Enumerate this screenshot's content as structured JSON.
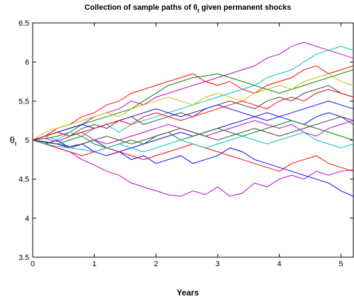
{
  "chart_data": {
    "type": "line",
    "title": [
      "Collection of sample paths of θ",
      "t",
      " given permanent shocks"
    ],
    "x_label": "Years",
    "y_label": [
      "θ",
      "t"
    ],
    "xlim": [
      0,
      5.2
    ],
    "xticks": [
      0,
      1,
      2,
      3,
      4,
      5
    ],
    "ylim": [
      3.5,
      6.5
    ],
    "yticks": [
      3.5,
      4,
      4.5,
      5,
      5.5,
      6,
      6.5
    ],
    "grid": false,
    "x": [
      0,
      0.2,
      0.4,
      0.6,
      0.8,
      1,
      1.2,
      1.4,
      1.6,
      1.8,
      2,
      2.2,
      2.4,
      2.6,
      2.8,
      3,
      3.2,
      3.4,
      3.6,
      3.8,
      4,
      4.2,
      4.4,
      4.6,
      4.8,
      5,
      5.2
    ],
    "series": [
      {
        "color": "#bf00bf",
        "values": [
          5.0,
          4.95,
          4.9,
          4.85,
          4.75,
          4.68,
          4.6,
          4.55,
          4.45,
          4.4,
          4.35,
          4.3,
          4.28,
          4.35,
          4.3,
          4.4,
          4.28,
          4.32,
          4.45,
          4.4,
          4.5,
          4.55,
          4.5,
          4.6,
          4.55,
          4.6,
          4.62
        ]
      },
      {
        "color": "#bf00bf",
        "values": [
          5.0,
          5.05,
          5.1,
          5.15,
          5.2,
          5.3,
          5.35,
          5.4,
          5.5,
          5.45,
          5.55,
          5.6,
          5.65,
          5.7,
          5.75,
          5.8,
          5.85,
          5.9,
          5.95,
          6.05,
          6.1,
          6.2,
          6.25,
          6.2,
          6.15,
          6.1,
          6.05
        ]
      },
      {
        "color": "#0000ff",
        "values": [
          5.0,
          4.98,
          4.95,
          4.9,
          4.95,
          4.85,
          4.8,
          4.85,
          4.75,
          4.8,
          4.7,
          4.75,
          4.8,
          4.7,
          4.75,
          4.8,
          4.9,
          4.85,
          4.75,
          4.7,
          4.65,
          4.6,
          4.55,
          4.5,
          4.45,
          4.35,
          4.28
        ]
      },
      {
        "color": "#ff0000",
        "values": [
          5.0,
          5.05,
          5.15,
          5.2,
          5.3,
          5.35,
          5.45,
          5.5,
          5.6,
          5.65,
          5.7,
          5.75,
          5.8,
          5.85,
          5.75,
          5.7,
          5.75,
          5.65,
          5.6,
          5.7,
          5.75,
          5.8,
          5.9,
          5.95,
          5.85,
          5.9,
          5.95
        ]
      },
      {
        "color": "#008000",
        "values": [
          5.0,
          5.02,
          5.05,
          5.1,
          5.2,
          5.25,
          5.3,
          5.35,
          5.4,
          5.5,
          5.6,
          5.7,
          5.75,
          5.8,
          5.82,
          5.85,
          5.8,
          5.75,
          5.7,
          5.65,
          5.6,
          5.65,
          5.7,
          5.75,
          5.8,
          5.85,
          5.9
        ]
      },
      {
        "color": "#00bfbf",
        "values": [
          5.0,
          5.05,
          5.0,
          5.1,
          5.05,
          5.15,
          5.2,
          5.1,
          5.2,
          5.25,
          5.3,
          5.35,
          5.4,
          5.45,
          5.5,
          5.55,
          5.6,
          5.65,
          5.7,
          5.8,
          5.85,
          5.9,
          6.0,
          6.1,
          6.15,
          6.2,
          6.15
        ]
      },
      {
        "color": "#0000ff",
        "values": [
          5.0,
          4.95,
          5.0,
          4.9,
          4.95,
          5.0,
          4.9,
          4.85,
          4.9,
          4.95,
          5.0,
          5.05,
          5.1,
          5.05,
          5.1,
          5.15,
          5.2,
          5.25,
          5.3,
          5.35,
          5.3,
          5.25,
          5.2,
          5.3,
          5.35,
          5.3,
          5.25
        ]
      },
      {
        "color": "#404040",
        "values": [
          5.0,
          5.05,
          5.1,
          5.05,
          5.15,
          5.2,
          5.15,
          5.25,
          5.3,
          5.2,
          5.25,
          5.3,
          5.35,
          5.3,
          5.4,
          5.45,
          5.5,
          5.45,
          5.4,
          5.5,
          5.55,
          5.5,
          5.6,
          5.65,
          5.7,
          5.6,
          5.55
        ]
      },
      {
        "color": "#bfbf00",
        "values": [
          5.0,
          5.1,
          5.15,
          5.2,
          5.25,
          5.3,
          5.35,
          5.3,
          5.4,
          5.45,
          5.5,
          5.55,
          5.5,
          5.45,
          5.55,
          5.6,
          5.55,
          5.5,
          5.6,
          5.65,
          5.7,
          5.65,
          5.75,
          5.8,
          5.85,
          5.75,
          5.7
        ]
      },
      {
        "color": "#ff0000",
        "values": [
          5.0,
          4.95,
          4.9,
          4.85,
          4.8,
          4.85,
          4.9,
          4.85,
          4.8,
          4.75,
          4.8,
          4.85,
          4.9,
          4.95,
          4.9,
          4.85,
          4.8,
          4.75,
          4.7,
          4.65,
          4.6,
          4.7,
          4.75,
          4.8,
          4.7,
          4.65,
          4.6
        ]
      },
      {
        "color": "#008000",
        "values": [
          5.0,
          4.98,
          4.95,
          5.0,
          5.05,
          4.95,
          4.9,
          4.95,
          5.0,
          4.95,
          5.05,
          5.1,
          5.0,
          5.05,
          5.1,
          5.15,
          5.1,
          5.05,
          5.1,
          5.15,
          5.2,
          5.25,
          5.2,
          5.15,
          5.1,
          5.05,
          5.0
        ]
      },
      {
        "color": "#0000ff",
        "values": [
          5.0,
          5.05,
          5.1,
          5.15,
          5.2,
          5.15,
          5.2,
          5.25,
          5.3,
          5.35,
          5.4,
          5.35,
          5.3,
          5.35,
          5.4,
          5.45,
          5.4,
          5.35,
          5.3,
          5.25,
          5.3,
          5.35,
          5.4,
          5.45,
          5.5,
          5.45,
          5.4
        ]
      },
      {
        "color": "#bf00bf",
        "values": [
          5.0,
          5.02,
          4.98,
          5.05,
          5.1,
          5.0,
          4.95,
          5.0,
          5.05,
          5.1,
          5.15,
          5.2,
          5.15,
          5.1,
          5.05,
          5.1,
          5.15,
          5.2,
          5.25,
          5.2,
          5.15,
          5.2,
          5.1,
          5.05,
          5.15,
          5.2,
          5.25
        ]
      },
      {
        "color": "#00bfbf",
        "values": [
          5.0,
          4.95,
          4.92,
          4.9,
          4.88,
          4.85,
          4.9,
          4.95,
          4.9,
          4.85,
          4.9,
          4.95,
          5.0,
          4.95,
          4.9,
          4.95,
          5.0,
          5.05,
          5.0,
          4.95,
          5.0,
          5.05,
          5.1,
          5.0,
          4.95,
          4.9,
          4.95
        ]
      },
      {
        "color": "#ff0000",
        "values": [
          5.0,
          5.05,
          5.1,
          5.05,
          5.1,
          5.15,
          5.2,
          5.25,
          5.2,
          5.3,
          5.35,
          5.3,
          5.25,
          5.3,
          5.35,
          5.4,
          5.45,
          5.5,
          5.45,
          5.4,
          5.5,
          5.55,
          5.5,
          5.6,
          5.65,
          5.6,
          5.55
        ]
      },
      {
        "color": "#404040",
        "values": [
          5.0,
          4.97,
          4.95,
          4.92,
          4.95,
          5.0,
          5.05,
          5.0,
          4.95,
          5.0,
          5.05,
          5.1,
          5.15,
          5.1,
          5.05,
          5.0,
          5.05,
          5.1,
          5.15,
          5.1,
          5.05,
          5.1,
          5.15,
          5.2,
          5.25,
          5.3,
          5.2
        ]
      }
    ]
  }
}
